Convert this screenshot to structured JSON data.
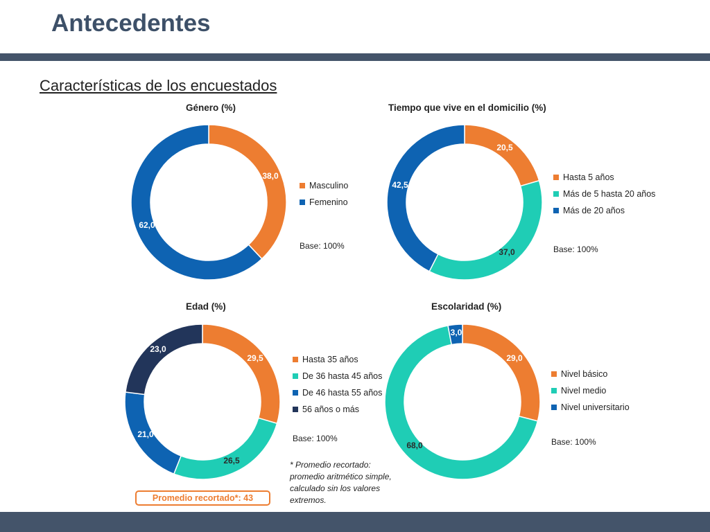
{
  "page": {
    "title": "Antecedentes",
    "subtitle": "Características de los encuestados",
    "note": "* Promedio recortado: promedio aritmético simple, calculado sin los valores extremos.",
    "promedio": "Promedio recortado*: 43"
  },
  "colors": {
    "header": "#3d5068",
    "bar": "#44546a",
    "orange": "#ed7d31",
    "teal": "#1fcdb5",
    "blue": "#0e63b2",
    "navy": "#22355a"
  },
  "chart_data": [
    {
      "type": "pie",
      "subtype": "donut",
      "title": "Género (%)",
      "base": "Base: 100%",
      "categories": [
        "Masculino",
        "Femenino"
      ],
      "values": [
        38.0,
        62.0
      ],
      "labels": [
        "38,0",
        "62,0"
      ],
      "colors": [
        "#ed7d31",
        "#0e63b2"
      ],
      "legend_position": "right"
    },
    {
      "type": "pie",
      "subtype": "donut",
      "title": "Tiempo que vive en el domicilio (%)",
      "base": "Base: 100%",
      "categories": [
        "Hasta 5 años",
        "Más de 5 hasta 20 años",
        "Más de 20 años"
      ],
      "values": [
        20.5,
        37.0,
        42.5
      ],
      "labels": [
        "20,5",
        "37,0",
        "42,5"
      ],
      "colors": [
        "#ed7d31",
        "#1fcdb5",
        "#0e63b2"
      ],
      "legend_position": "right"
    },
    {
      "type": "pie",
      "subtype": "donut",
      "title": "Edad (%)",
      "base": "Base: 100%",
      "categories": [
        "Hasta 35 años",
        "De 36 hasta 45 años",
        "De 46 hasta 55 años",
        "56 años o más"
      ],
      "values": [
        29.5,
        26.5,
        21.0,
        23.0
      ],
      "labels": [
        "29,5",
        "26,5",
        "21,0",
        "23,0"
      ],
      "colors": [
        "#ed7d31",
        "#1fcdb5",
        "#0e63b2",
        "#22355a"
      ],
      "legend_position": "right"
    },
    {
      "type": "pie",
      "subtype": "donut",
      "title": "Escolaridad (%)",
      "base": "Base: 100%",
      "categories": [
        "Nivel básico",
        "Nivel medio",
        "Nivel universitario"
      ],
      "values": [
        29.0,
        68.0,
        3.0
      ],
      "labels": [
        "29,0",
        "68,0",
        "3,0"
      ],
      "colors": [
        "#ed7d31",
        "#1fcdb5",
        "#0e63b2"
      ],
      "legend_position": "right"
    }
  ]
}
